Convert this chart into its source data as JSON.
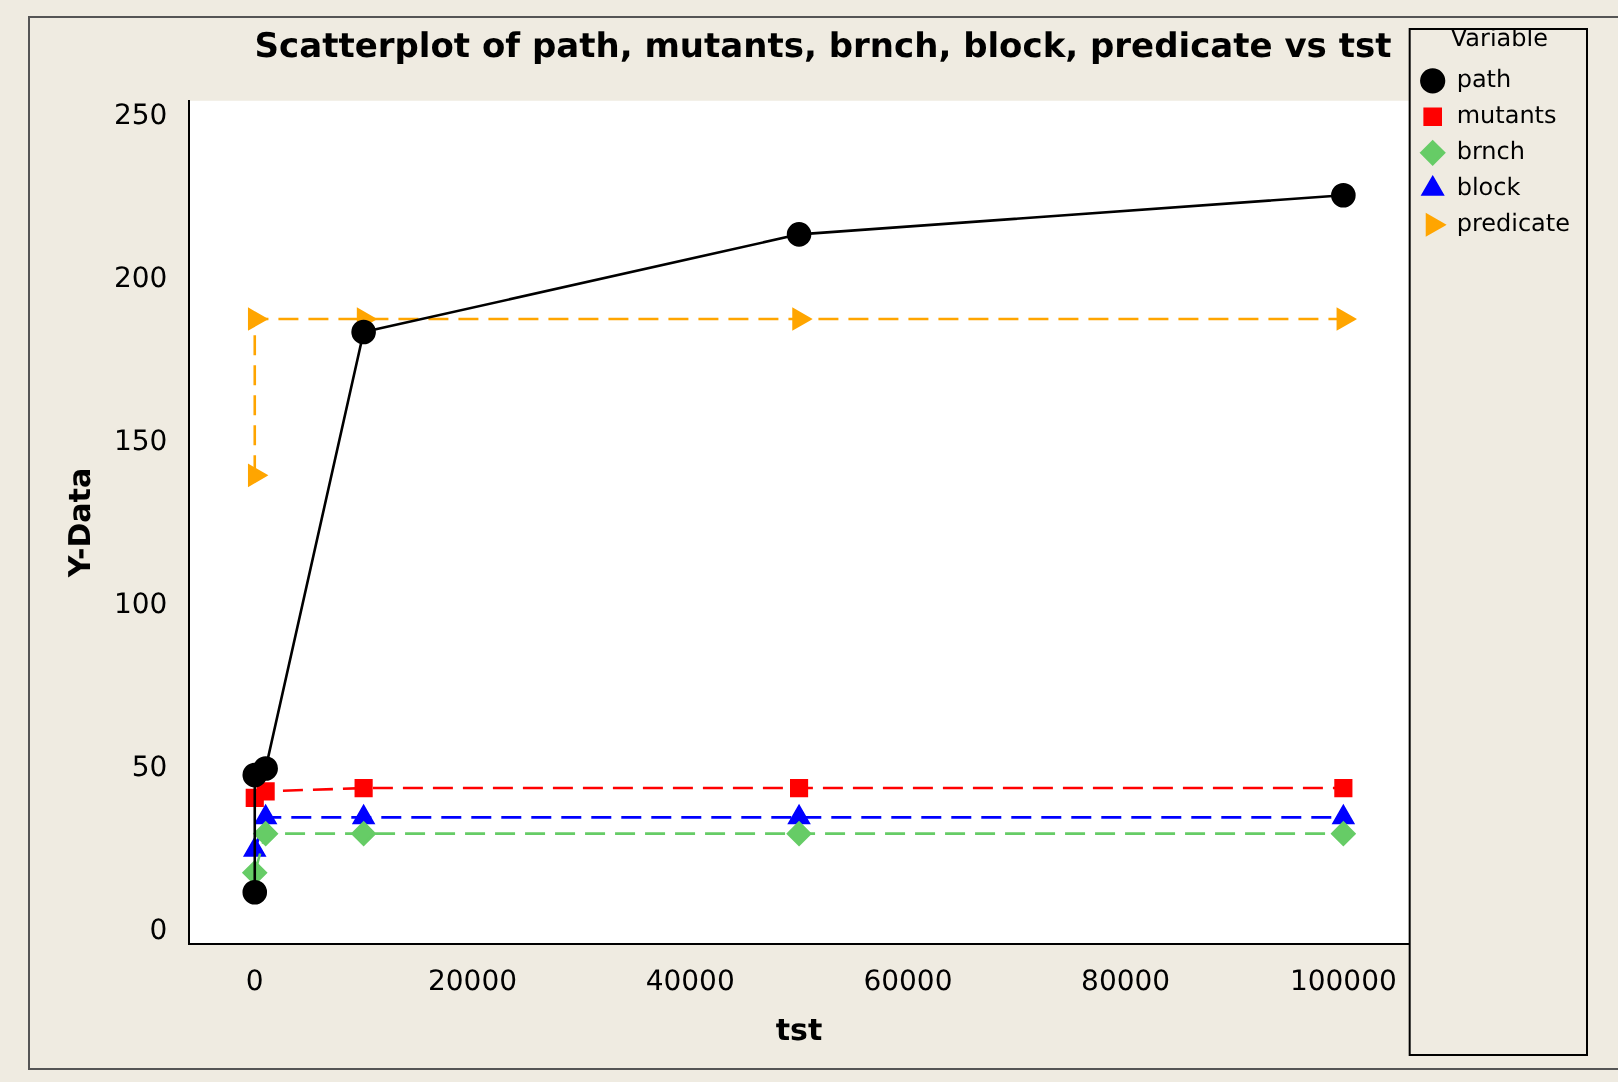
{
  "chart_data": {
    "type": "line",
    "title": "Scatterplot of path, mutants, brnch, block, predicate vs tst",
    "xlabel": "tst",
    "ylabel": "Y-Data",
    "legend_title": "Variable",
    "legend": "right",
    "series": [
      {
        "name": "path",
        "color": "#000000",
        "marker": "circle",
        "line_style": "solid",
        "x": [
          0,
          0,
          1000,
          10000,
          50000,
          100000
        ],
        "values": [
          12,
          48,
          50,
          184,
          214,
          226
        ]
      },
      {
        "name": "mutants",
        "color": "#ff0000",
        "marker": "square",
        "line_style": "dashed",
        "x": [
          0,
          1000,
          10000,
          50000,
          100000
        ],
        "values": [
          41,
          43,
          44,
          44,
          44
        ]
      },
      {
        "name": "brnch",
        "color": "#66cc66",
        "marker": "diamond",
        "line_style": "dashed",
        "x": [
          0,
          1000,
          10000,
          50000,
          100000
        ],
        "values": [
          18,
          30,
          30,
          30,
          30
        ]
      },
      {
        "name": "block",
        "color": "#0000ff",
        "marker": "triangle",
        "line_style": "dashed",
        "x": [
          0,
          1000,
          10000,
          50000,
          100000
        ],
        "values": [
          25,
          35,
          35,
          35,
          35
        ]
      },
      {
        "name": "predicate",
        "color": "#ffa500",
        "marker": "triangle",
        "line_style": "dashed",
        "x": [
          0,
          0,
          10000,
          50000,
          100000
        ],
        "values": [
          140,
          188,
          188,
          188,
          188
        ]
      }
    ],
    "xlim": [
      -6000,
      106000
    ],
    "xticks": [
      0,
      20000,
      40000,
      60000,
      80000,
      100000
    ],
    "ylim": [
      -4,
      255
    ],
    "yticks": [
      0,
      50,
      100,
      150,
      200,
      250
    ],
    "grid": false
  }
}
